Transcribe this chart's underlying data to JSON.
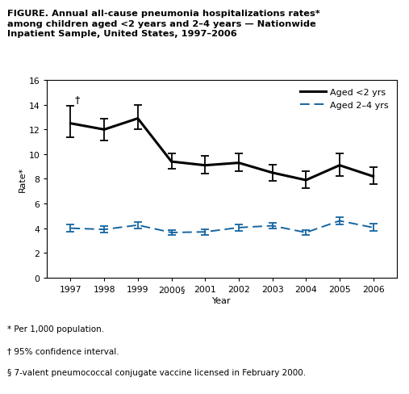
{
  "years": [
    1997,
    1998,
    1999,
    2000,
    2001,
    2002,
    2003,
    2004,
    2005,
    2006
  ],
  "x_labels": [
    "1997",
    "1998",
    "1999",
    "2000§",
    "2001",
    "2002",
    "2003",
    "2004",
    "2005",
    "2006"
  ],
  "line1_values": [
    12.5,
    12.0,
    12.9,
    9.4,
    9.1,
    9.3,
    8.5,
    7.9,
    9.1,
    8.2
  ],
  "line1_yerr_lo": [
    1.1,
    0.9,
    0.9,
    0.55,
    0.65,
    0.65,
    0.65,
    0.65,
    0.85,
    0.65
  ],
  "line1_yerr_hi": [
    1.4,
    0.9,
    1.1,
    0.65,
    0.75,
    0.75,
    0.65,
    0.7,
    0.95,
    0.75
  ],
  "line2_values": [
    4.0,
    3.9,
    4.25,
    3.65,
    3.7,
    4.05,
    4.2,
    3.65,
    4.6,
    4.05
  ],
  "line2_yerr_lo": [
    0.28,
    0.25,
    0.28,
    0.22,
    0.22,
    0.25,
    0.25,
    0.2,
    0.28,
    0.3
  ],
  "line2_yerr_hi": [
    0.28,
    0.25,
    0.28,
    0.22,
    0.22,
    0.25,
    0.25,
    0.2,
    0.28,
    0.3
  ],
  "line1_color": "#000000",
  "line2_color": "#1464a0",
  "line1_label": "Aged <2 yrs",
  "line2_label": "Aged 2–4 yrs",
  "title_bold": "FIGURE.",
  "title_rest": " Annual all-cause pneumonia hospitalizations rates*\namong children aged <2 years and 2–4 years — Nationwide\nInpatient Sample, United States, 1997–2006",
  "ylabel": "Rate*",
  "xlabel": "Year",
  "ylim": [
    0,
    16
  ],
  "yticks": [
    0,
    2,
    4,
    6,
    8,
    10,
    12,
    14,
    16
  ],
  "footnote1": "* Per 1,000 population.",
  "footnote2": "† 95% confidence interval.",
  "footnote3": "§ 7-valent pneumococcal conjugate vaccine licensed in February 2000.",
  "dagger_text": "†",
  "background_color": "#ffffff"
}
